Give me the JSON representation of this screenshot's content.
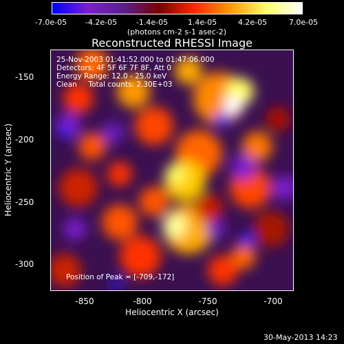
{
  "colorbar": {
    "ticks": [
      "-7.0e-05",
      "-4.2e-05",
      "-1.4e-05",
      "1.4e-05",
      "4.2e-05",
      "7.0e-05"
    ],
    "units_label": "(photons cm-2 s-1 asec-2)",
    "min": -7e-05,
    "max": 7e-05
  },
  "title": "Reconstructed RHESSI Image",
  "info": {
    "time_range": "25-Nov-2003 01:41:52.000 to 01:47:06.000",
    "detectors": "Detectors: 4F 5F 6F 7F 8F, Att 0",
    "energy_range": "Energy Range: 12.0 - 25.0 keV",
    "method_counts": "Clean     Total counts: 2.30E+03"
  },
  "peak_text": "Position of Peak = [-709,-172]",
  "axes": {
    "xlabel": "Heliocentric X (arcsec)",
    "ylabel": "Heliocentric Y (arcsec)",
    "xticks": [
      "-850",
      "-800",
      "-750",
      "-700"
    ],
    "yticks": [
      "-150",
      "-200",
      "-250",
      "-300"
    ],
    "xrange": [
      -873,
      -677
    ],
    "yrange": [
      -128,
      -322
    ]
  },
  "timestamp": "30-May-2013 14:23",
  "colors": {
    "colormap": [
      "#0000ff",
      "#7a1fd0",
      "#5a1f8a",
      "#7a0000",
      "#ff2a00",
      "#ff9900",
      "#ffff66",
      "#ffffff"
    ]
  }
}
